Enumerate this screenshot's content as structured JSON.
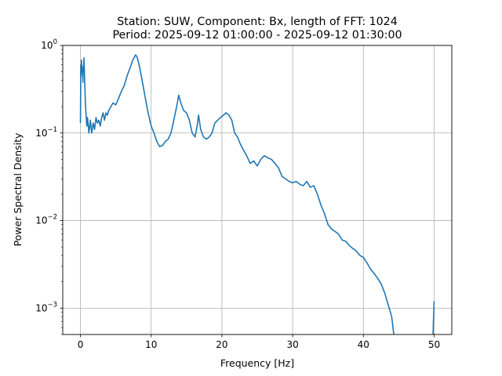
{
  "chart_data": {
    "type": "line",
    "title_lines": [
      "Station: SUW, Component: Bx, length of FFT: 1024",
      "Period: 2025-09-12 01:00:00 - 2025-09-12 01:30:00"
    ],
    "xlabel": "Frequency [Hz]",
    "ylabel": "Power Spectral Density",
    "xlim": [
      -2.5,
      52.5
    ],
    "ylim": [
      0.0005,
      1
    ],
    "yscale": "log",
    "grid": true,
    "x_ticks": [
      {
        "value": 0,
        "label": "0"
      },
      {
        "value": 10,
        "label": "10"
      },
      {
        "value": 20,
        "label": "20"
      },
      {
        "value": 30,
        "label": "30"
      },
      {
        "value": 40,
        "label": "40"
      },
      {
        "value": 50,
        "label": "50"
      }
    ],
    "y_ticks": [
      {
        "value": 0.001,
        "base": "10",
        "exp": "−3"
      },
      {
        "value": 0.01,
        "base": "10",
        "exp": "−2"
      },
      {
        "value": 0.1,
        "base": "10",
        "exp": "−1"
      },
      {
        "value": 1,
        "base": "10",
        "exp": "0"
      }
    ],
    "series": [
      {
        "color": "#1f77b4",
        "x": [
          0.0,
          0.05,
          0.1,
          0.15,
          0.2,
          0.25,
          0.3,
          0.35,
          0.4,
          0.45,
          0.5,
          0.6,
          0.7,
          0.8,
          0.9,
          1.0,
          1.2,
          1.4,
          1.6,
          1.8,
          2.0,
          2.2,
          2.4,
          2.6,
          2.8,
          3.0,
          3.2,
          3.4,
          3.6,
          3.8,
          4.0,
          4.3,
          4.6,
          5.0,
          5.4,
          5.8,
          6.2,
          6.6,
          7.0,
          7.4,
          7.8,
          8.0,
          8.3,
          8.6,
          9.0,
          9.5,
          10.0,
          10.4,
          10.8,
          11.2,
          11.6,
          12.0,
          12.4,
          12.8,
          13.2,
          13.6,
          13.9,
          14.2,
          14.6,
          15.0,
          15.4,
          15.8,
          16.2,
          16.5,
          16.7,
          17.0,
          17.4,
          17.8,
          18.2,
          18.6,
          19.0,
          19.4,
          19.8,
          20.2,
          20.6,
          21.0,
          21.4,
          21.8,
          22.2,
          22.6,
          23.0,
          23.5,
          24.0,
          24.5,
          25.0,
          25.5,
          26.0,
          26.5,
          27.0,
          27.5,
          28.0,
          28.5,
          29.0,
          29.5,
          30.0,
          30.5,
          31.0,
          31.5,
          32.0,
          32.5,
          33.0,
          33.5,
          34.0,
          34.5,
          35.0,
          35.5,
          36.0,
          36.5,
          37.0,
          37.5,
          38.0,
          38.5,
          39.0,
          39.5,
          40.0,
          40.5,
          41.0,
          41.5,
          42.0,
          42.5,
          43.0,
          43.5,
          44.0,
          44.3
        ],
        "y": [
          0.13,
          0.6,
          0.45,
          0.68,
          0.55,
          0.5,
          0.52,
          0.38,
          0.58,
          0.5,
          0.72,
          0.4,
          0.22,
          0.16,
          0.12,
          0.15,
          0.1,
          0.14,
          0.1,
          0.13,
          0.11,
          0.15,
          0.13,
          0.14,
          0.12,
          0.15,
          0.17,
          0.14,
          0.17,
          0.16,
          0.18,
          0.2,
          0.22,
          0.21,
          0.25,
          0.3,
          0.35,
          0.45,
          0.55,
          0.68,
          0.78,
          0.74,
          0.6,
          0.45,
          0.3,
          0.18,
          0.12,
          0.1,
          0.08,
          0.07,
          0.072,
          0.08,
          0.085,
          0.1,
          0.14,
          0.2,
          0.27,
          0.22,
          0.18,
          0.17,
          0.14,
          0.1,
          0.09,
          0.12,
          0.16,
          0.11,
          0.09,
          0.085,
          0.09,
          0.1,
          0.13,
          0.14,
          0.15,
          0.16,
          0.17,
          0.16,
          0.14,
          0.1,
          0.09,
          0.075,
          0.065,
          0.055,
          0.045,
          0.048,
          0.042,
          0.05,
          0.055,
          0.052,
          0.05,
          0.045,
          0.04,
          0.032,
          0.03,
          0.028,
          0.027,
          0.028,
          0.026,
          0.025,
          0.028,
          0.024,
          0.025,
          0.02,
          0.015,
          0.012,
          0.009,
          0.008,
          0.0075,
          0.007,
          0.006,
          0.0058,
          0.0052,
          0.0048,
          0.0045,
          0.004,
          0.0038,
          0.0033,
          0.0028,
          0.0025,
          0.0022,
          0.0019,
          0.0015,
          0.0011,
          0.0008,
          0.0005
        ]
      },
      {
        "color": "#1f77b4",
        "x": [
          49.85,
          49.9,
          49.95,
          50.0
        ],
        "y": [
          0.0005,
          0.0007,
          0.0009,
          0.0012
        ]
      }
    ]
  }
}
